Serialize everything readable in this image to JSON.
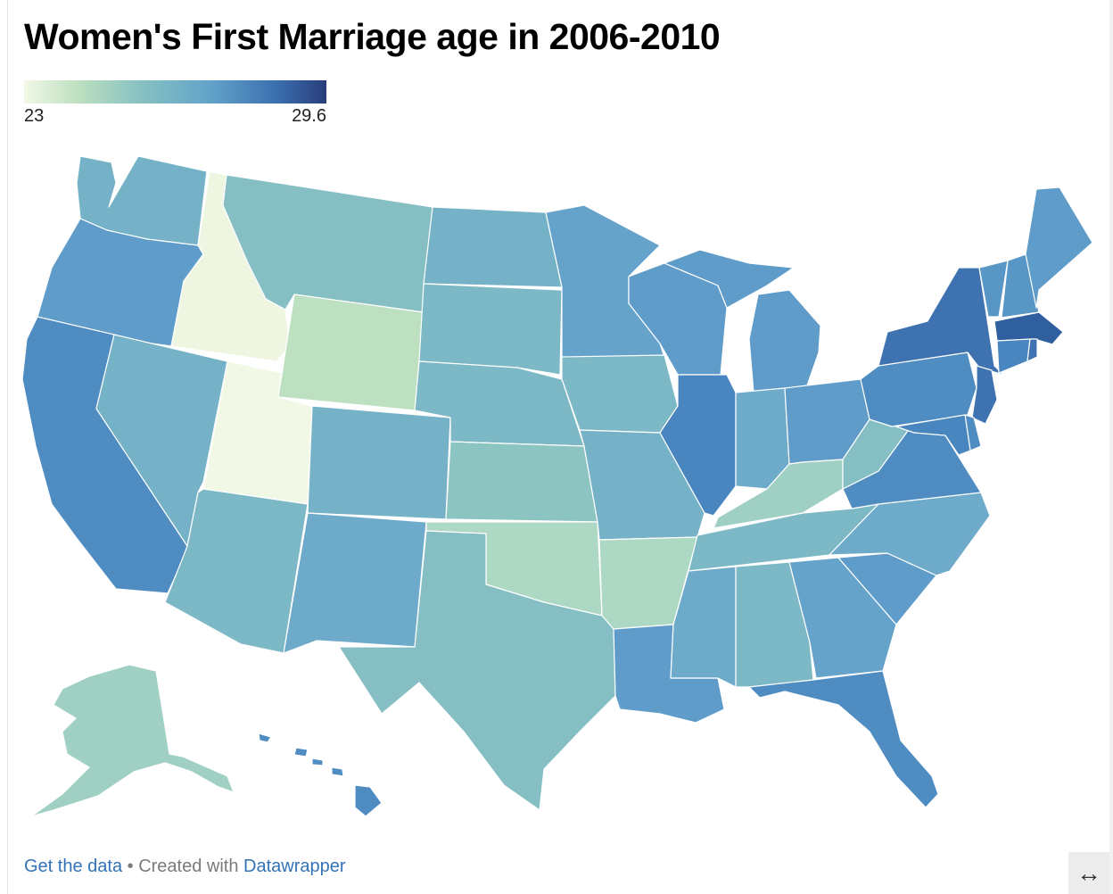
{
  "title": "Women's First Marriage age in 2006-2010",
  "legend": {
    "min_label": "23",
    "max_label": "29.6"
  },
  "footer": {
    "get_data": "Get the data",
    "separator": " • ",
    "created_with": "Created with ",
    "datawrapper": "Datawrapper"
  },
  "expand_icon": "↔",
  "colors": {
    "c1": "#f2f8e6",
    "c2": "#eef6e2",
    "c3": "#bde0c0",
    "c4": "#add8c3",
    "c5": "#9fd0c3",
    "c6": "#8cc4c2",
    "c7": "#85bfc4",
    "c8": "#7cb8c6",
    "c9": "#76b2c7",
    "c10": "#6eaac9",
    "c11": "#66a3ca",
    "c12": "#5f9cc9",
    "c13": "#5896c6",
    "c14": "#4f8cc2",
    "c15": "#4985bf",
    "c16": "#3e72b0",
    "c17": "#2f5f9f",
    "c18": "#2a4e8c"
  },
  "states": [
    {
      "name": "Washington",
      "color": "c9"
    },
    {
      "name": "Oregon",
      "color": "c12"
    },
    {
      "name": "California",
      "color": "c14"
    },
    {
      "name": "Idaho",
      "color": "c2"
    },
    {
      "name": "Nevada",
      "color": "c9"
    },
    {
      "name": "Utah",
      "color": "c1"
    },
    {
      "name": "Arizona",
      "color": "c8"
    },
    {
      "name": "Montana",
      "color": "c7"
    },
    {
      "name": "Wyoming",
      "color": "c3"
    },
    {
      "name": "Colorado",
      "color": "c9"
    },
    {
      "name": "New Mexico",
      "color": "c10"
    },
    {
      "name": "North Dakota",
      "color": "c9"
    },
    {
      "name": "South Dakota",
      "color": "c8"
    },
    {
      "name": "Nebraska",
      "color": "c8"
    },
    {
      "name": "Kansas",
      "color": "c6"
    },
    {
      "name": "Oklahoma",
      "color": "c4"
    },
    {
      "name": "Texas",
      "color": "c7"
    },
    {
      "name": "Minnesota",
      "color": "c11"
    },
    {
      "name": "Iowa",
      "color": "c8"
    },
    {
      "name": "Missouri",
      "color": "c9"
    },
    {
      "name": "Arkansas",
      "color": "c4"
    },
    {
      "name": "Louisiana",
      "color": "c12"
    },
    {
      "name": "Wisconsin",
      "color": "c12"
    },
    {
      "name": "Illinois",
      "color": "c15"
    },
    {
      "name": "Michigan",
      "color": "c12"
    },
    {
      "name": "Indiana",
      "color": "c10"
    },
    {
      "name": "Ohio",
      "color": "c12"
    },
    {
      "name": "Kentucky",
      "color": "c5"
    },
    {
      "name": "Tennessee",
      "color": "c8"
    },
    {
      "name": "Mississippi",
      "color": "c10"
    },
    {
      "name": "Alabama",
      "color": "c8"
    },
    {
      "name": "Georgia",
      "color": "c11"
    },
    {
      "name": "Florida",
      "color": "c14"
    },
    {
      "name": "South Carolina",
      "color": "c12"
    },
    {
      "name": "North Carolina",
      "color": "c10"
    },
    {
      "name": "Virginia",
      "color": "c14"
    },
    {
      "name": "West Virginia",
      "color": "c7"
    },
    {
      "name": "Pennsylvania",
      "color": "c14"
    },
    {
      "name": "New York",
      "color": "c16"
    },
    {
      "name": "Vermont",
      "color": "c13"
    },
    {
      "name": "New Hampshire",
      "color": "c13"
    },
    {
      "name": "Maine",
      "color": "c12"
    },
    {
      "name": "Massachusetts",
      "color": "c17"
    },
    {
      "name": "Rhode Island",
      "color": "c16"
    },
    {
      "name": "Connecticut",
      "color": "c15"
    },
    {
      "name": "New Jersey",
      "color": "c16"
    },
    {
      "name": "Delaware",
      "color": "c14"
    },
    {
      "name": "Maryland",
      "color": "c15"
    },
    {
      "name": "Alaska",
      "color": "c5"
    },
    {
      "name": "Hawaii",
      "color": "c14"
    }
  ]
}
